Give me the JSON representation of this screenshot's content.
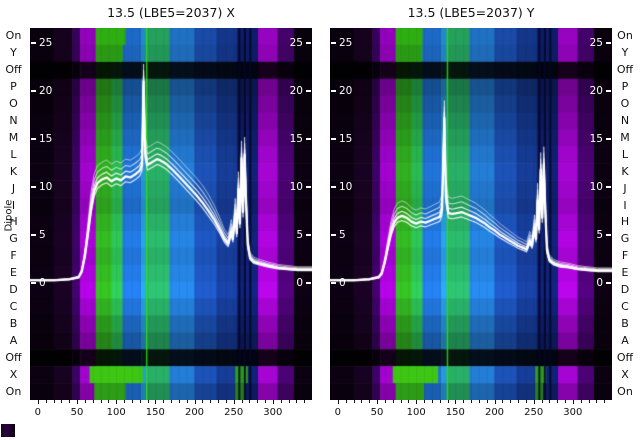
{
  "titles": {
    "left": "13.5 (LBE5=2037) X",
    "right": "13.5 (LBE5=2037) Y"
  },
  "axis_labels": {
    "dipole": "Dipole",
    "row_labels": [
      "On",
      "Y",
      "Off",
      "P",
      "O",
      "N",
      "M",
      "L",
      "K",
      "J",
      "I",
      "H",
      "G",
      "F",
      "E",
      "D",
      "C",
      "B",
      "A",
      "Off",
      "X",
      "On"
    ],
    "x_ticks": [
      0,
      50,
      100,
      150,
      200,
      250,
      300
    ],
    "overlay_ticks": [
      25,
      20,
      15,
      10,
      5,
      0
    ]
  },
  "chart_data": [
    {
      "type": "heatmap",
      "title": "13.5 (LBE5=2037) X",
      "x_range": [
        -10,
        350
      ],
      "x_ticks": [
        0,
        50,
        100,
        150,
        200,
        250,
        300
      ],
      "overlay": {
        "type": "line",
        "color": "#ffffff",
        "ylim": [
          0,
          26.5
        ],
        "ticks": [
          0,
          5,
          10,
          15,
          20,
          25
        ],
        "series": [
          {
            "name": "X traces",
            "points": [
              [
                -10,
                0.3
              ],
              [
                20,
                0.3
              ],
              [
                40,
                0.4
              ],
              [
                52,
                0.6
              ],
              [
                56,
                1.2
              ],
              [
                60,
                2.8
              ],
              [
                64,
                5.2
              ],
              [
                68,
                7.8
              ],
              [
                72,
                9.6
              ],
              [
                76,
                10.4
              ],
              [
                82,
                10.8
              ],
              [
                88,
                11.0
              ],
              [
                94,
                10.6
              ],
              [
                100,
                10.9
              ],
              [
                106,
                10.7
              ],
              [
                112,
                11.1
              ],
              [
                118,
                11.0
              ],
              [
                124,
                11.3
              ],
              [
                130,
                11.7
              ],
              [
                133,
                12.3
              ],
              [
                135,
                21.0
              ],
              [
                137,
                13.5
              ],
              [
                140,
                12.3
              ],
              [
                144,
                12.5
              ],
              [
                148,
                12.7
              ],
              [
                152,
                12.9
              ],
              [
                156,
                12.8
              ],
              [
                160,
                12.6
              ],
              [
                164,
                12.4
              ],
              [
                168,
                12.1
              ],
              [
                172,
                11.8
              ],
              [
                178,
                11.3
              ],
              [
                186,
                10.6
              ],
              [
                194,
                9.9
              ],
              [
                202,
                9.2
              ],
              [
                210,
                8.4
              ],
              [
                218,
                7.5
              ],
              [
                226,
                6.5
              ],
              [
                232,
                5.6
              ],
              [
                238,
                4.6
              ],
              [
                243,
                4.1
              ],
              [
                247,
                5.4
              ],
              [
                249,
                4.6
              ],
              [
                252,
                7.2
              ],
              [
                254,
                5.2
              ],
              [
                256,
                9.8
              ],
              [
                258,
                6.2
              ],
              [
                260,
                13.0
              ],
              [
                262,
                7.4
              ],
              [
                264,
                13.4
              ],
              [
                266,
                8.0
              ],
              [
                268,
                4.0
              ],
              [
                271,
                2.6
              ],
              [
                276,
                2.2
              ],
              [
                284,
                2.0
              ],
              [
                294,
                1.8
              ],
              [
                306,
                1.6
              ],
              [
                318,
                1.5
              ],
              [
                332,
                1.4
              ],
              [
                350,
                1.4
              ]
            ]
          }
        ]
      },
      "columns": [
        {
          "x0": -10,
          "x1": 20,
          "color": "#0a0110"
        },
        {
          "x0": 20,
          "x1": 44,
          "color": "#17021f"
        },
        {
          "x0": 44,
          "x1": 54,
          "color": "#3a0260"
        },
        {
          "x0": 54,
          "x1": 74,
          "color": "#9b02c6"
        },
        {
          "x0": 74,
          "x1": 94,
          "color": "#2fa81e"
        },
        {
          "x0": 94,
          "x1": 108,
          "color": "#29b24e"
        },
        {
          "x0": 108,
          "x1": 132,
          "color": "#1f6fd0"
        },
        {
          "x0": 132,
          "x1": 140,
          "color": "#2492cf"
        },
        {
          "x0": 140,
          "x1": 168,
          "color": "#27a862"
        },
        {
          "x0": 168,
          "x1": 200,
          "color": "#2277cc"
        },
        {
          "x0": 200,
          "x1": 228,
          "color": "#1b4fb0"
        },
        {
          "x0": 228,
          "x1": 254,
          "color": "#153a92"
        },
        {
          "x0": 254,
          "x1": 281,
          "color": "#0f1f70"
        },
        {
          "x0": 281,
          "x1": 306,
          "color": "#9e04c9"
        },
        {
          "x0": 306,
          "x1": 327,
          "color": "#47026e"
        },
        {
          "x0": 327,
          "x1": 350,
          "color": "#0b0110"
        }
      ],
      "row_factors": [
        0.95,
        0.9,
        0.13,
        0.7,
        0.78,
        0.85,
        0.92,
        1.0,
        1.05,
        1.0,
        0.95,
        1.05,
        1.12,
        1.05,
        1.12,
        1.18,
        1.05,
        0.9,
        0.78,
        0.13,
        1.05,
        0.85
      ],
      "features": {
        "green_line_x": 138,
        "dark_lines_x": [
          256,
          263,
          270
        ],
        "green_bands": [
          {
            "row": 0,
            "x0": 74,
            "x1": 112,
            "color": "#2fae12"
          },
          {
            "row": 1,
            "x0": 74,
            "x1": 108,
            "color": "#2a9a14"
          },
          {
            "row": 20,
            "x0": 66,
            "x1": 134,
            "color": "#3ec614"
          },
          {
            "row": 20,
            "x0": 252,
            "x1": 268,
            "color": "#2f9e1e"
          },
          {
            "row": 21,
            "x0": 72,
            "x1": 112,
            "color": "#2d9c16"
          },
          {
            "row": 21,
            "x0": 252,
            "x1": 264,
            "color": "#27801c"
          }
        ]
      }
    },
    {
      "type": "heatmap",
      "title": "13.5 (LBE5=2037) Y",
      "x_range": [
        -10,
        350
      ],
      "x_ticks": [
        0,
        50,
        100,
        150,
        200,
        250,
        300
      ],
      "overlay": {
        "type": "line",
        "color": "#ffffff",
        "ylim": [
          0,
          26.5
        ],
        "ticks": [
          0,
          5,
          10,
          15,
          20,
          25
        ],
        "series": [
          {
            "name": "Y traces",
            "points": [
              [
                -10,
                0.3
              ],
              [
                20,
                0.3
              ],
              [
                40,
                0.4
              ],
              [
                52,
                0.6
              ],
              [
                56,
                1.0
              ],
              [
                60,
                2.2
              ],
              [
                64,
                3.8
              ],
              [
                68,
                5.3
              ],
              [
                72,
                6.3
              ],
              [
                76,
                6.8
              ],
              [
                82,
                7.0
              ],
              [
                88,
                6.8
              ],
              [
                94,
                6.4
              ],
              [
                100,
                6.2
              ],
              [
                106,
                6.4
              ],
              [
                112,
                6.3
              ],
              [
                118,
                6.5
              ],
              [
                124,
                6.7
              ],
              [
                130,
                6.9
              ],
              [
                133,
                7.6
              ],
              [
                136,
                17.2
              ],
              [
                138,
                9.0
              ],
              [
                141,
                7.3
              ],
              [
                146,
                7.2
              ],
              [
                152,
                7.3
              ],
              [
                158,
                7.4
              ],
              [
                164,
                7.2
              ],
              [
                170,
                7.0
              ],
              [
                176,
                6.8
              ],
              [
                182,
                6.5
              ],
              [
                188,
                6.2
              ],
              [
                194,
                5.8
              ],
              [
                200,
                5.5
              ],
              [
                206,
                5.1
              ],
              [
                212,
                4.8
              ],
              [
                218,
                4.5
              ],
              [
                224,
                4.2
              ],
              [
                230,
                3.9
              ],
              [
                236,
                3.7
              ],
              [
                241,
                3.5
              ],
              [
                245,
                4.4
              ],
              [
                248,
                3.9
              ],
              [
                251,
                5.8
              ],
              [
                253,
                4.6
              ],
              [
                255,
                8.6
              ],
              [
                257,
                5.6
              ],
              [
                259,
                11.8
              ],
              [
                261,
                6.8
              ],
              [
                263,
                12.4
              ],
              [
                265,
                7.2
              ],
              [
                267,
                3.4
              ],
              [
                270,
                2.4
              ],
              [
                276,
                2.0
              ],
              [
                284,
                1.8
              ],
              [
                294,
                1.7
              ],
              [
                306,
                1.5
              ],
              [
                318,
                1.4
              ],
              [
                332,
                1.3
              ],
              [
                350,
                1.3
              ]
            ]
          }
        ]
      },
      "columns": [
        {
          "x0": -10,
          "x1": 20,
          "color": "#0a0110"
        },
        {
          "x0": 20,
          "x1": 44,
          "color": "#17021f"
        },
        {
          "x0": 44,
          "x1": 54,
          "color": "#3a0260"
        },
        {
          "x0": 54,
          "x1": 74,
          "color": "#9b02c6"
        },
        {
          "x0": 74,
          "x1": 94,
          "color": "#2fa81e"
        },
        {
          "x0": 94,
          "x1": 108,
          "color": "#29b24e"
        },
        {
          "x0": 108,
          "x1": 132,
          "color": "#1f6fd0"
        },
        {
          "x0": 132,
          "x1": 140,
          "color": "#2492cf"
        },
        {
          "x0": 140,
          "x1": 168,
          "color": "#27a862"
        },
        {
          "x0": 168,
          "x1": 200,
          "color": "#2277cc"
        },
        {
          "x0": 200,
          "x1": 228,
          "color": "#1b4fb0"
        },
        {
          "x0": 228,
          "x1": 254,
          "color": "#153a92"
        },
        {
          "x0": 254,
          "x1": 281,
          "color": "#0f1f70"
        },
        {
          "x0": 281,
          "x1": 306,
          "color": "#9e04c9"
        },
        {
          "x0": 306,
          "x1": 327,
          "color": "#47026e"
        },
        {
          "x0": 327,
          "x1": 350,
          "color": "#0b0110"
        }
      ],
      "row_factors": [
        0.95,
        0.9,
        0.13,
        0.7,
        0.78,
        0.85,
        0.92,
        1.0,
        1.05,
        1.0,
        0.95,
        1.05,
        1.12,
        1.05,
        1.12,
        1.18,
        1.05,
        0.9,
        0.78,
        0.13,
        1.05,
        0.85
      ],
      "features": {
        "green_line_x": 139,
        "dark_lines_x": [
          256,
          263,
          270
        ],
        "green_bands": [
          {
            "row": 0,
            "x0": 74,
            "x1": 108,
            "color": "#2fae12"
          },
          {
            "row": 1,
            "x0": 74,
            "x1": 106,
            "color": "#2a9a14"
          },
          {
            "row": 20,
            "x0": 70,
            "x1": 128,
            "color": "#3ec614"
          },
          {
            "row": 20,
            "x0": 252,
            "x1": 266,
            "color": "#2f9e1e"
          },
          {
            "row": 21,
            "x0": 74,
            "x1": 110,
            "color": "#2d9c16"
          },
          {
            "row": 21,
            "x0": 252,
            "x1": 262,
            "color": "#27801c"
          }
        ]
      }
    }
  ]
}
